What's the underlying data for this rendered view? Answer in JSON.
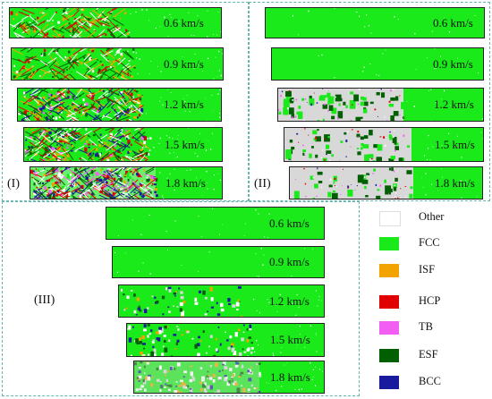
{
  "panels": [
    {
      "label": "(I)",
      "bars": [
        {
          "speed": "0.6 km/s",
          "style": "mixed-light"
        },
        {
          "speed": "0.9 km/s",
          "style": "mixed-light"
        },
        {
          "speed": "1.2 km/s",
          "style": "mixed-heavy"
        },
        {
          "speed": "1.5 km/s",
          "style": "mixed-heavy"
        },
        {
          "speed": "1.8 km/s",
          "style": "mixed-chaotic"
        }
      ]
    },
    {
      "label": "(II)",
      "bars": [
        {
          "speed": "0.6 km/s",
          "style": "clean"
        },
        {
          "speed": "0.9 km/s",
          "style": "clean"
        },
        {
          "speed": "1.2 km/s",
          "style": "gray-sparse"
        },
        {
          "speed": "1.5 km/s",
          "style": "gray-medium"
        },
        {
          "speed": "1.8 km/s",
          "style": "gray-dense"
        }
      ]
    },
    {
      "label": "(III)",
      "bars": [
        {
          "speed": "0.6 km/s",
          "style": "clean"
        },
        {
          "speed": "0.9 km/s",
          "style": "clean"
        },
        {
          "speed": "1.2 km/s",
          "style": "spotty-light"
        },
        {
          "speed": "1.5 km/s",
          "style": "spotty-medium"
        },
        {
          "speed": "1.8 km/s",
          "style": "spotty-heavy"
        }
      ]
    }
  ],
  "legend": [
    {
      "label": "Other",
      "color": "#ffffff"
    },
    {
      "label": "FCC",
      "color": "#1aea1a"
    },
    {
      "label": "ISF",
      "color": "#f2a300"
    },
    {
      "label": "HCP",
      "color": "#e00000"
    },
    {
      "label": "TB",
      "color": "#f25ef2"
    },
    {
      "label": "ESF",
      "color": "#005f00"
    },
    {
      "label": "BCC",
      "color": "#1a1a9e"
    }
  ]
}
